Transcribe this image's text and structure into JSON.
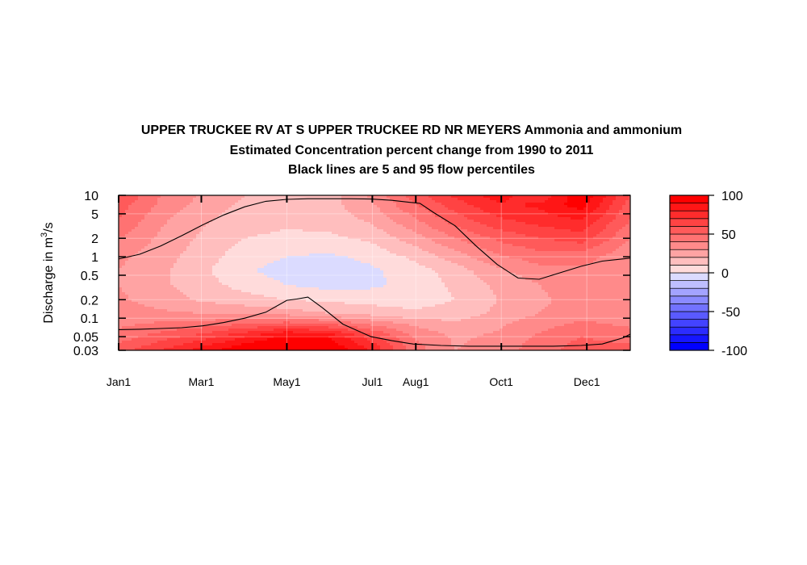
{
  "chart_data": {
    "type": "heatmap",
    "title": "UPPER TRUCKEE RV AT S UPPER TRUCKEE RD NR MEYERS  Ammonia and ammonium",
    "subtitle": "Estimated Concentration percent change from 1990 to 2011",
    "subtitle2": "Black lines are 5 and 95 flow percentiles",
    "xlabel": "",
    "ylabel_prefix": "Discharge in m",
    "ylabel_sup": "3",
    "ylabel_suffix": "/s",
    "y_scale": "log",
    "ylim": [
      0.03,
      10
    ],
    "xlim_day": [
      0,
      365
    ],
    "x_ticks": [
      {
        "day": 0,
        "label": "Jan1"
      },
      {
        "day": 59,
        "label": "Mar1"
      },
      {
        "day": 120,
        "label": "May1"
      },
      {
        "day": 181,
        "label": "Jul1"
      },
      {
        "day": 212,
        "label": "Aug1"
      },
      {
        "day": 273,
        "label": "Oct1"
      },
      {
        "day": 334,
        "label": "Dec1"
      }
    ],
    "y_ticks": [
      {
        "value": 10,
        "label": "10"
      },
      {
        "value": 5,
        "label": "5"
      },
      {
        "value": 2,
        "label": "2"
      },
      {
        "value": 1,
        "label": "1"
      },
      {
        "value": 0.5,
        "label": "0.5"
      },
      {
        "value": 0.2,
        "label": "0.2"
      },
      {
        "value": 0.1,
        "label": "0.1"
      },
      {
        "value": 0.05,
        "label": "0.05"
      },
      {
        "value": 0.03,
        "label": "0.03"
      }
    ],
    "colorbar": {
      "range": [
        -100,
        100
      ],
      "levels": 20,
      "ticks": [
        {
          "value": 100,
          "label": "100"
        },
        {
          "value": 50,
          "label": "50"
        },
        {
          "value": 0,
          "label": "0"
        },
        {
          "value": -50,
          "label": "-50"
        },
        {
          "value": -100,
          "label": "-100"
        }
      ]
    },
    "grid_days": [
      0,
      30,
      60,
      90,
      120,
      150,
      180,
      210,
      240,
      270,
      300,
      330,
      365
    ],
    "grid_q": [
      0.03,
      0.05,
      0.08,
      0.12,
      0.2,
      0.35,
      0.6,
      1,
      2,
      4,
      7,
      10
    ],
    "z": [
      [
        55,
        70,
        85,
        100,
        100,
        100,
        80,
        45,
        30,
        35,
        45,
        55,
        55
      ],
      [
        45,
        55,
        65,
        80,
        95,
        90,
        65,
        40,
        28,
        32,
        42,
        50,
        45
      ],
      [
        38,
        42,
        45,
        50,
        55,
        50,
        38,
        28,
        22,
        28,
        36,
        42,
        38
      ],
      [
        35,
        32,
        30,
        28,
        25,
        20,
        16,
        12,
        14,
        22,
        30,
        36,
        35
      ],
      [
        32,
        25,
        18,
        14,
        10,
        8,
        6,
        5,
        10,
        20,
        28,
        34,
        32
      ],
      [
        30,
        22,
        14,
        6,
        0,
        -4,
        -2,
        3,
        12,
        22,
        30,
        36,
        30
      ],
      [
        30,
        22,
        12,
        2,
        -5,
        -6,
        -2,
        5,
        15,
        28,
        36,
        38,
        30
      ],
      [
        32,
        25,
        14,
        5,
        0,
        -2,
        3,
        12,
        25,
        38,
        45,
        45,
        32
      ],
      [
        40,
        28,
        18,
        10,
        8,
        8,
        12,
        25,
        40,
        52,
        60,
        65,
        40
      ],
      [
        50,
        32,
        22,
        14,
        12,
        14,
        22,
        38,
        55,
        68,
        75,
        80,
        50
      ],
      [
        55,
        38,
        26,
        18,
        14,
        16,
        28,
        48,
        65,
        78,
        82,
        95,
        55
      ],
      [
        60,
        40,
        28,
        20,
        14,
        16,
        32,
        55,
        72,
        85,
        70,
        100,
        60
      ]
    ],
    "series": [
      {
        "x": [
          0,
          15,
          30,
          45,
          60,
          75,
          90,
          105,
          120,
          135,
          150,
          165,
          180,
          195,
          210,
          215,
          225,
          240,
          255,
          270,
          285,
          300,
          315,
          330,
          345,
          365
        ],
        "y": [
          0.92,
          1.1,
          1.5,
          2.2,
          3.3,
          4.8,
          6.5,
          8,
          8.6,
          8.8,
          8.8,
          8.8,
          8.7,
          8.3,
          7.6,
          7.4,
          5.2,
          3.2,
          1.5,
          0.75,
          0.45,
          0.43,
          0.55,
          0.7,
          0.85,
          0.95
        ]
      },
      {
        "x": [
          0,
          15,
          30,
          45,
          60,
          75,
          90,
          105,
          120,
          127,
          135,
          145,
          160,
          180,
          195,
          210,
          230,
          250,
          270,
          290,
          310,
          330,
          345,
          360,
          365
        ],
        "y": [
          0.065,
          0.066,
          0.068,
          0.07,
          0.075,
          0.085,
          0.1,
          0.125,
          0.195,
          0.205,
          0.22,
          0.15,
          0.08,
          0.05,
          0.043,
          0.038,
          0.036,
          0.035,
          0.035,
          0.035,
          0.035,
          0.036,
          0.038,
          0.048,
          0.055
        ]
      }
    ]
  }
}
